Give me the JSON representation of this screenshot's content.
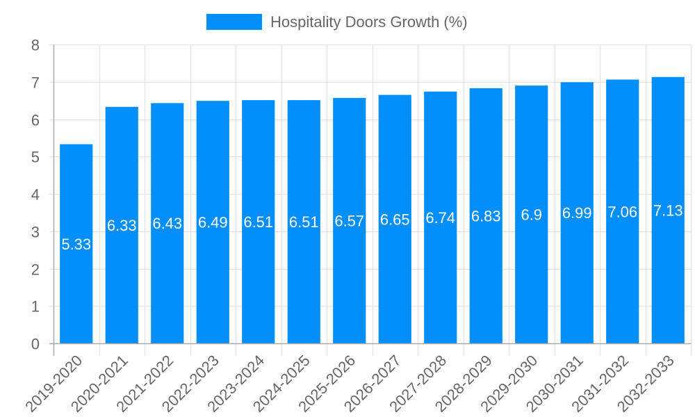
{
  "chart_data": {
    "type": "bar",
    "title": "",
    "legend": [
      {
        "label": "Hospitality Doors Growth (%)",
        "color": "#038ffb"
      }
    ],
    "legend_position": "top",
    "xlabel": "",
    "ylabel": "",
    "categories": [
      "2019-2020",
      "2020-2021",
      "2021-2022",
      "2022-2023",
      "2023-2024",
      "2024-2025",
      "2025-2026",
      "2026-2027",
      "2027-2028",
      "2028-2029",
      "2029-2030",
      "2030-2031",
      "2031-2032",
      "2032-2033"
    ],
    "series": [
      {
        "name": "Hospitality Doors Growth (%)",
        "color": "#038ffb",
        "values": [
          5.33,
          6.33,
          6.43,
          6.49,
          6.51,
          6.51,
          6.57,
          6.65,
          6.74,
          6.83,
          6.9,
          6.99,
          7.06,
          7.13
        ]
      }
    ],
    "data_labels": [
      "5.33",
      "6.33",
      "6.43",
      "6.49",
      "6.51",
      "6.51",
      "6.57",
      "6.65",
      "6.74",
      "6.83",
      "6.9",
      "6.99",
      "7.06",
      "7.13"
    ],
    "ylim": [
      0,
      8
    ],
    "yticks": [
      0,
      1,
      2,
      3,
      4,
      5,
      6,
      7,
      8
    ],
    "grid": true,
    "x_tick_rotation": -45
  },
  "colors": {
    "bar": "#038ffb",
    "grid": "#e1e1e1",
    "axis": "#a8a8a8",
    "text": "#666666",
    "label": "#ffffff"
  }
}
